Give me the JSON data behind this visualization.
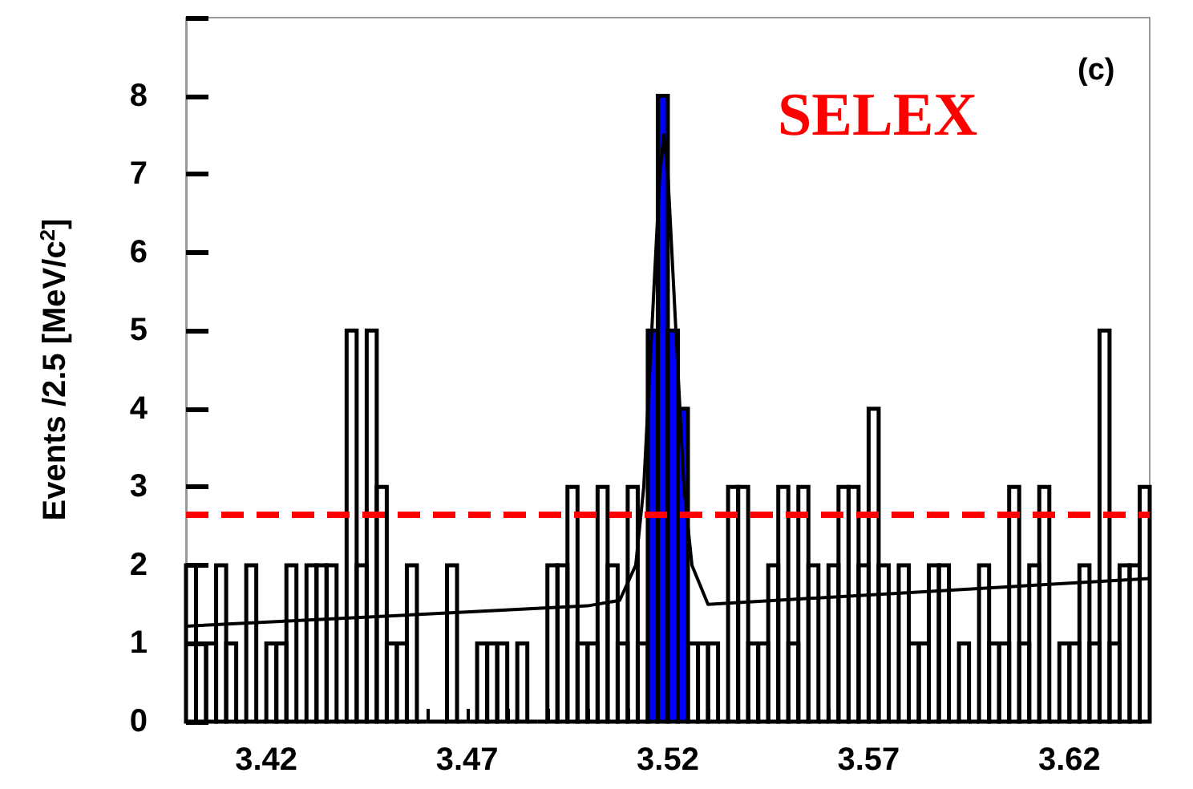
{
  "chart_data": {
    "type": "histogram",
    "ylabel": "Events /2.5 [MeV/c$^{2}$]",
    "annotations": [
      "SELEX",
      "(c)"
    ],
    "bins": [
      3.4,
      3.4025,
      3.405,
      3.4075,
      3.41,
      3.4125,
      3.415,
      3.4175,
      3.42,
      3.4225,
      3.425,
      3.4275,
      3.43,
      3.4325,
      3.435,
      3.4375,
      3.44,
      3.4425,
      3.445,
      3.4475,
      3.45,
      3.4525,
      3.455,
      3.4575,
      3.46,
      3.4625,
      3.465,
      3.4675,
      3.47,
      3.4725,
      3.475,
      3.4775,
      3.48,
      3.4825,
      3.485,
      3.4875,
      3.49,
      3.4925,
      3.495,
      3.4975,
      3.5,
      3.5025,
      3.505,
      3.5075,
      3.51,
      3.5125,
      3.515,
      3.5175,
      3.52,
      3.5225,
      3.525,
      3.5275,
      3.53,
      3.5325,
      3.535,
      3.5375,
      3.54,
      3.5425,
      3.545,
      3.5475,
      3.55,
      3.5525,
      3.555,
      3.5575,
      3.56,
      3.5625,
      3.565,
      3.5675,
      3.57,
      3.5725,
      3.575,
      3.5775,
      3.58,
      3.5825,
      3.585,
      3.5875,
      3.59,
      3.5925,
      3.595,
      3.5975,
      3.6,
      3.6025,
      3.605,
      3.6075,
      3.61,
      3.6125,
      3.615,
      3.6175,
      3.62,
      3.6225,
      3.625,
      3.6275,
      3.63,
      3.6325,
      3.635,
      3.6375,
      3.64
    ],
    "series": [
      {
        "color": "#000000",
        "colors": [
          "#000000",
          "#000000",
          "#000000",
          "#000000",
          "#000000",
          "#000000",
          "#000000",
          "#000000",
          "#000000",
          "#000000",
          "#000000",
          "#000000",
          "#000000",
          "#000000",
          "#000000",
          "#000000",
          "#000000",
          "#000000",
          "#000000",
          "#000000",
          "#000000",
          "#000000",
          "#000000",
          "#000000",
          "#000000",
          "#000000",
          "#000000",
          "#000000",
          "#000000",
          "#000000",
          "#000000",
          "#000000",
          "#000000",
          "#000000",
          "#000000",
          "#000000",
          "#000000",
          "#000000",
          "#000000",
          "#000000",
          "#000000",
          "#000000",
          "#000000",
          "#000000",
          "#000000",
          "#000000",
          "#0000ff",
          "#0000ff",
          "#0000ff",
          "#0000ff",
          "#000000",
          "#000000",
          "#000000",
          "#000000",
          "#000000",
          "#000000",
          "#000000",
          "#000000",
          "#000000",
          "#000000",
          "#000000",
          "#000000",
          "#000000",
          "#000000",
          "#000000",
          "#000000",
          "#000000",
          "#000000",
          "#000000",
          "#000000",
          "#000000",
          "#000000",
          "#000000",
          "#000000",
          "#000000",
          "#000000",
          "#000000",
          "#000000",
          "#000000",
          "#000000",
          "#000000",
          "#000000",
          "#000000",
          "#000000",
          "#000000",
          "#000000",
          "#000000",
          "#000000",
          "#000000",
          "#000000",
          "#000000",
          "#000000",
          "#000000",
          "#000000",
          "#000000",
          "#000000"
        ],
        "values": [
          2,
          1,
          1,
          2,
          1,
          0,
          2,
          0,
          1,
          1,
          2,
          0,
          2,
          2,
          2,
          0,
          5,
          2,
          5,
          3,
          1,
          1,
          2,
          0,
          0,
          0,
          2,
          0,
          0,
          1,
          1,
          1,
          0,
          1,
          0,
          0,
          2,
          2,
          3,
          1,
          1,
          3,
          2,
          1,
          3,
          1,
          5,
          8,
          5,
          4,
          1,
          1,
          1,
          0,
          3,
          3,
          1,
          1,
          2,
          3,
          1,
          3,
          2,
          0,
          2,
          3,
          3,
          2,
          4,
          2,
          0,
          2,
          1,
          1,
          2,
          2,
          0,
          1,
          0,
          2,
          1,
          1,
          3,
          1,
          2,
          3,
          0,
          1,
          1,
          2,
          1,
          5,
          1,
          2,
          2,
          3
        ]
      },
      {
        "type": "line",
        "color": "#000000",
        "x": [
          3.4,
          3.5,
          3.508,
          3.512,
          3.514,
          3.516,
          3.518,
          3.519,
          3.52,
          3.522,
          3.524,
          3.526,
          3.53,
          3.64
        ],
        "values": [
          1.22,
          1.48,
          1.55,
          2.0,
          3.0,
          5.0,
          7.0,
          7.5,
          7.0,
          5.0,
          3.0,
          2.0,
          1.5,
          1.83
        ]
      }
    ],
    "ref_lines": [
      {
        "axis": "y",
        "value": 2.65,
        "color": "#ff0000",
        "line_style": "dashed"
      }
    ],
    "xlim": [
      3.4,
      3.64
    ],
    "xticks": [
      {
        "value": 3.4,
        "label": null
      },
      {
        "value": 3.41,
        "label": null
      },
      3.42,
      {
        "value": 3.43,
        "label": null
      },
      {
        "value": 3.44,
        "label": null
      },
      {
        "value": 3.45,
        "label": null
      },
      {
        "value": 3.46,
        "label": null
      },
      3.47,
      {
        "value": 3.48,
        "label": null
      },
      {
        "value": 3.49,
        "label": null
      },
      {
        "value": 3.5,
        "label": null
      },
      {
        "value": 3.51,
        "label": null
      },
      3.52,
      {
        "value": 3.53,
        "label": null
      },
      {
        "value": 3.54,
        "label": null
      },
      {
        "value": 3.55,
        "label": null
      },
      {
        "value": 3.56,
        "label": null
      },
      3.57,
      {
        "value": 3.58,
        "label": null
      },
      {
        "value": 3.59,
        "label": null
      },
      {
        "value": 3.6,
        "label": null
      },
      {
        "value": 3.61,
        "label": null
      },
      3.62,
      {
        "value": 3.63,
        "label": null
      }
    ],
    "ylim": [
      0,
      9
    ],
    "yticks": [
      0,
      1,
      2,
      3,
      4,
      5,
      6,
      7,
      8,
      {
        "value": 9,
        "label": null
      }
    ],
    "grid": false,
    "marker": "none"
  }
}
